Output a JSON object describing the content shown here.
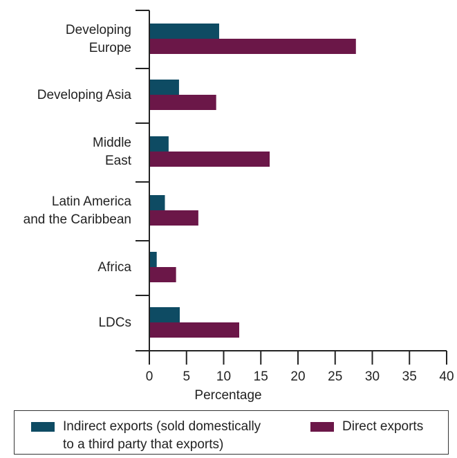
{
  "chart_data": {
    "type": "bar",
    "orientation": "horizontal",
    "categories": [
      "Developing\nEurope",
      "Developing Asia",
      "Middle\nEast",
      "Latin America\nand the Caribbean",
      "Africa",
      "LDCs"
    ],
    "series": [
      {
        "name": "Indirect exports (sold domestically\nto a third party that exports)",
        "color": "#0e4b63",
        "values": [
          9.3,
          3.9,
          2.5,
          2.0,
          0.9,
          4.0
        ]
      },
      {
        "name": "Direct exports",
        "color": "#6b1748",
        "values": [
          27.7,
          8.9,
          16.1,
          6.5,
          3.5,
          12.0
        ]
      }
    ],
    "xlabel": "Percentage",
    "ylabel": "",
    "title": "",
    "xlim": [
      0,
      40
    ],
    "xticks": [
      "0",
      "5",
      "10",
      "15",
      "20",
      "25",
      "30",
      "35",
      "40"
    ],
    "legend_position": "bottom",
    "grid": false
  }
}
